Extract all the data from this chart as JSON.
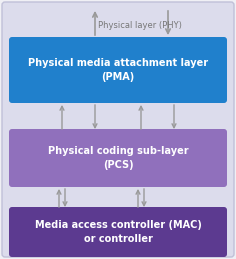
{
  "bg_color": "#f0f0f5",
  "outer_box_color": "#dcdcec",
  "outer_box_edge": "#c0c0d8",
  "pma_box_color": "#2080cc",
  "pma_text": "Physical media attachment layer\n(PMA)",
  "pma_text_color": "#ffffff",
  "pcs_box_color": "#9070bc",
  "pcs_text": "Physical coding sub-layer\n(PCS)",
  "pcs_text_color": "#ffffff",
  "mac_box_color": "#5c3a90",
  "mac_text": "Media access controller (MAC)\nor controller",
  "mac_text_color": "#ffffff",
  "phy_label": "Physical layer (PHY)",
  "phy_label_color": "#777777",
  "arrow_color": "#999999",
  "fig_width": 2.36,
  "fig_height": 2.59,
  "dpi": 100
}
